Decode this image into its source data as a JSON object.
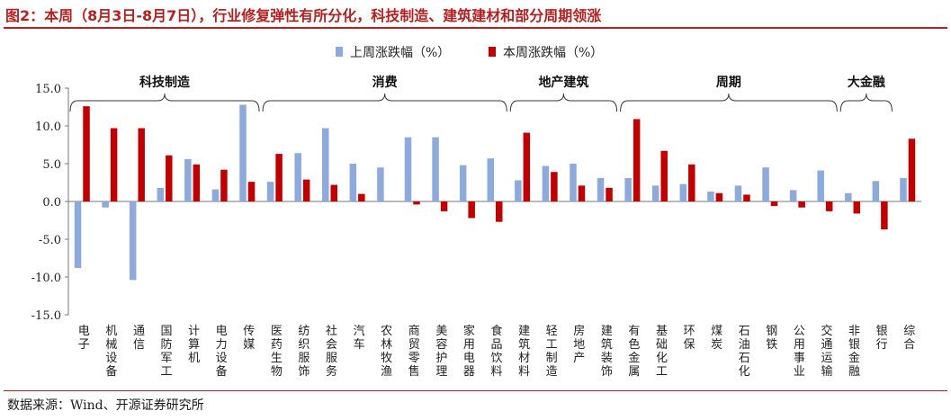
{
  "title": "图2：本周（8月3日-8月7日），行业修复弹性有所分化，科技制造、建筑建材和部分周期领涨",
  "source": "数据来源：Wind、开源证券研究所",
  "colors": {
    "prev": "#8eaadb",
    "curr": "#c00000",
    "accent": "#b22222"
  },
  "chart_data": {
    "type": "bar",
    "categories": [
      "电子",
      "机械设备",
      "通信",
      "国防军工",
      "计算机",
      "电力设备",
      "传媒",
      "医药生物",
      "纺织服饰",
      "社会服务",
      "汽车",
      "农林牧渔",
      "商贸零售",
      "美容护理",
      "家用电器",
      "食品饮料",
      "建筑材料",
      "轻工制造",
      "房地产",
      "建筑装饰",
      "有色金属",
      "基础化工",
      "环保",
      "煤炭",
      "石油石化",
      "钢铁",
      "公用事业",
      "交通运输",
      "非银金融",
      "银行",
      "综合"
    ],
    "series": [
      {
        "name": "上周涨跌幅（%）",
        "values": [
          -8.8,
          -0.8,
          -10.4,
          1.8,
          5.6,
          1.6,
          12.8,
          2.6,
          6.4,
          9.7,
          5.0,
          4.5,
          8.5,
          8.5,
          4.8,
          5.7,
          2.8,
          4.7,
          5.0,
          3.1,
          3.1,
          2.1,
          2.3,
          1.3,
          2.1,
          4.5,
          1.5,
          4.1,
          1.1,
          2.7,
          3.1
        ]
      },
      {
        "name": "本周涨跌幅（%）",
        "values": [
          12.6,
          9.7,
          9.7,
          6.1,
          4.9,
          4.2,
          2.6,
          6.3,
          2.9,
          2.2,
          1.0,
          0.0,
          -0.4,
          -1.3,
          -2.2,
          -2.7,
          9.1,
          3.9,
          2.1,
          1.8,
          10.9,
          6.7,
          4.9,
          1.1,
          0.9,
          -0.6,
          -0.8,
          -1.3,
          -1.6,
          -3.7,
          8.3
        ]
      }
    ],
    "ylim": [
      -15,
      15
    ],
    "yticks": [
      "15.0",
      "10.0",
      "5.0",
      "0.0",
      "-5.0",
      "-10.0",
      "-15.0"
    ],
    "ytick_values": [
      15,
      10,
      5,
      0,
      -5,
      -10,
      -15
    ],
    "legend_position": "top-center",
    "groups": [
      {
        "label": "科技制造",
        "start": 0,
        "end": 6
      },
      {
        "label": "消费",
        "start": 7,
        "end": 15
      },
      {
        "label": "地产建筑",
        "start": 16,
        "end": 19
      },
      {
        "label": "周期",
        "start": 20,
        "end": 27
      },
      {
        "label": "大金融",
        "start": 28,
        "end": 29
      }
    ]
  }
}
